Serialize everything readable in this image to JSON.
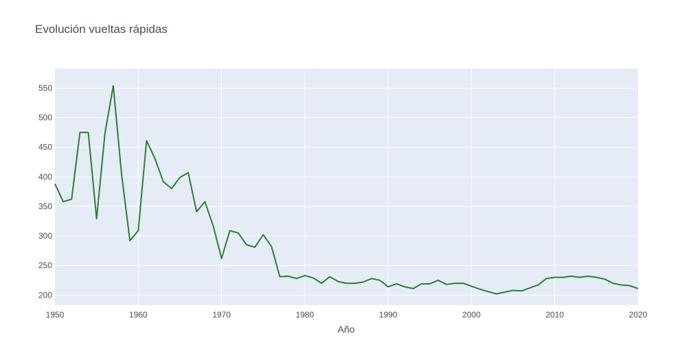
{
  "chart_data": {
    "type": "line",
    "title": "Evolución vueltas rápidas",
    "xlabel": "Año",
    "ylabel": "",
    "xlim": [
      1950,
      2020
    ],
    "ylim": [
      183,
      583
    ],
    "x_ticks": [
      1950,
      1960,
      1970,
      1980,
      1990,
      2000,
      2010,
      2020
    ],
    "y_ticks": [
      200,
      250,
      300,
      350,
      400,
      450,
      500,
      550
    ],
    "grid": true,
    "legend": "none",
    "colors": {
      "plot_bg": "#e5ecf6",
      "grid": "#ffffff",
      "line": "#2e7d32",
      "text": "#444c5c"
    },
    "series": [
      {
        "x": [
          1950,
          1951,
          1952,
          1953,
          1954,
          1955,
          1956,
          1957,
          1958,
          1959,
          1960,
          1961,
          1962,
          1963,
          1964,
          1965,
          1966,
          1967,
          1968,
          1969,
          1970,
          1971,
          1972,
          1973,
          1974,
          1975,
          1976,
          1977,
          1978,
          1979,
          1980,
          1981,
          1982,
          1983,
          1984,
          1985,
          1986,
          1987,
          1988,
          1989,
          1990,
          1991,
          1992,
          1993,
          1994,
          1995,
          1996,
          1997,
          1998,
          1999,
          2000,
          2001,
          2002,
          2003,
          2004,
          2005,
          2006,
          2007,
          2008,
          2009,
          2010,
          2011,
          2012,
          2013,
          2014,
          2015,
          2016,
          2017,
          2018,
          2019,
          2020
        ],
        "values": [
          388,
          358,
          362,
          475,
          475,
          329,
          473,
          554,
          404,
          292,
          309,
          461,
          431,
          392,
          380,
          399,
          407,
          341,
          358,
          317,
          262,
          309,
          305,
          285,
          281,
          302,
          282,
          231,
          232,
          228,
          233,
          229,
          220,
          231,
          223,
          220,
          220,
          222,
          228,
          225,
          214,
          219,
          214,
          211,
          219,
          219,
          225,
          218,
          220,
          220,
          215,
          210,
          206,
          202,
          205,
          208,
          207,
          212,
          217,
          228,
          230,
          230,
          232,
          230,
          232,
          230,
          227,
          220,
          217,
          216,
          211
        ]
      }
    ]
  }
}
